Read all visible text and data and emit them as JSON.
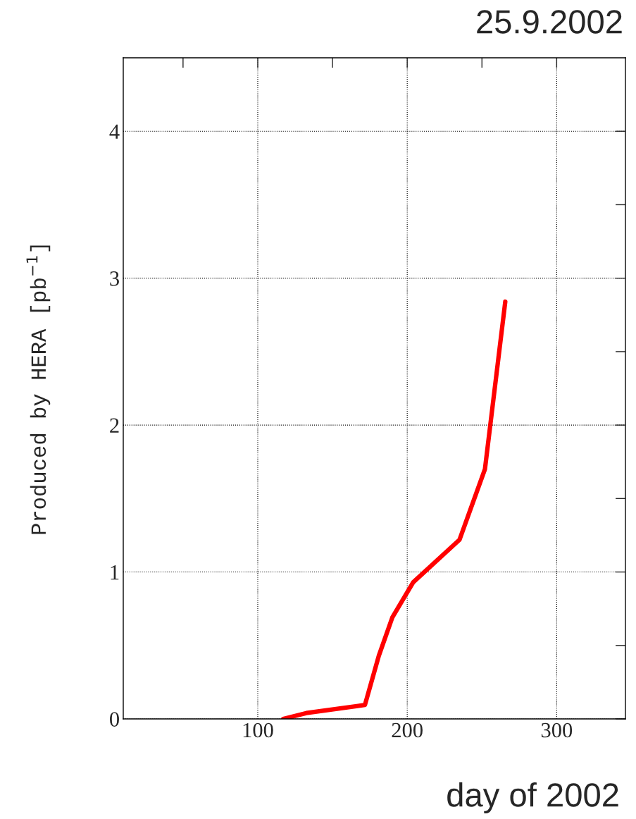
{
  "chart_data": {
    "type": "line",
    "title": "25.9.2002",
    "xlabel": "day of 2002",
    "ylabel": "Produced by HERA [pb$^{−1}$]",
    "series": [
      {
        "color": "#ff0000",
        "x": [
          117,
          132.5,
          171.7,
          181,
          190,
          204,
          235,
          252,
          265.6
        ],
        "values": [
          0,
          0.04,
          0.095,
          0.43,
          0.69,
          0.93,
          1.22,
          1.7,
          2.84
        ]
      }
    ],
    "xlim": [
      10,
      346
    ],
    "xticks": [
      {
        "value": 50,
        "label": null
      },
      100,
      {
        "value": 150,
        "label": null
      },
      200,
      {
        "value": 250,
        "label": null
      },
      300
    ],
    "ylim": [
      0,
      4.5
    ],
    "yticks": [
      0,
      {
        "value": 0.5,
        "label": null
      },
      1,
      {
        "value": 1.5,
        "label": null
      },
      2,
      {
        "value": 2.5,
        "label": null
      },
      3,
      {
        "value": 3.5,
        "label": null
      },
      4
    ],
    "grid": true,
    "marker": "none",
    "line_style": "solid"
  }
}
